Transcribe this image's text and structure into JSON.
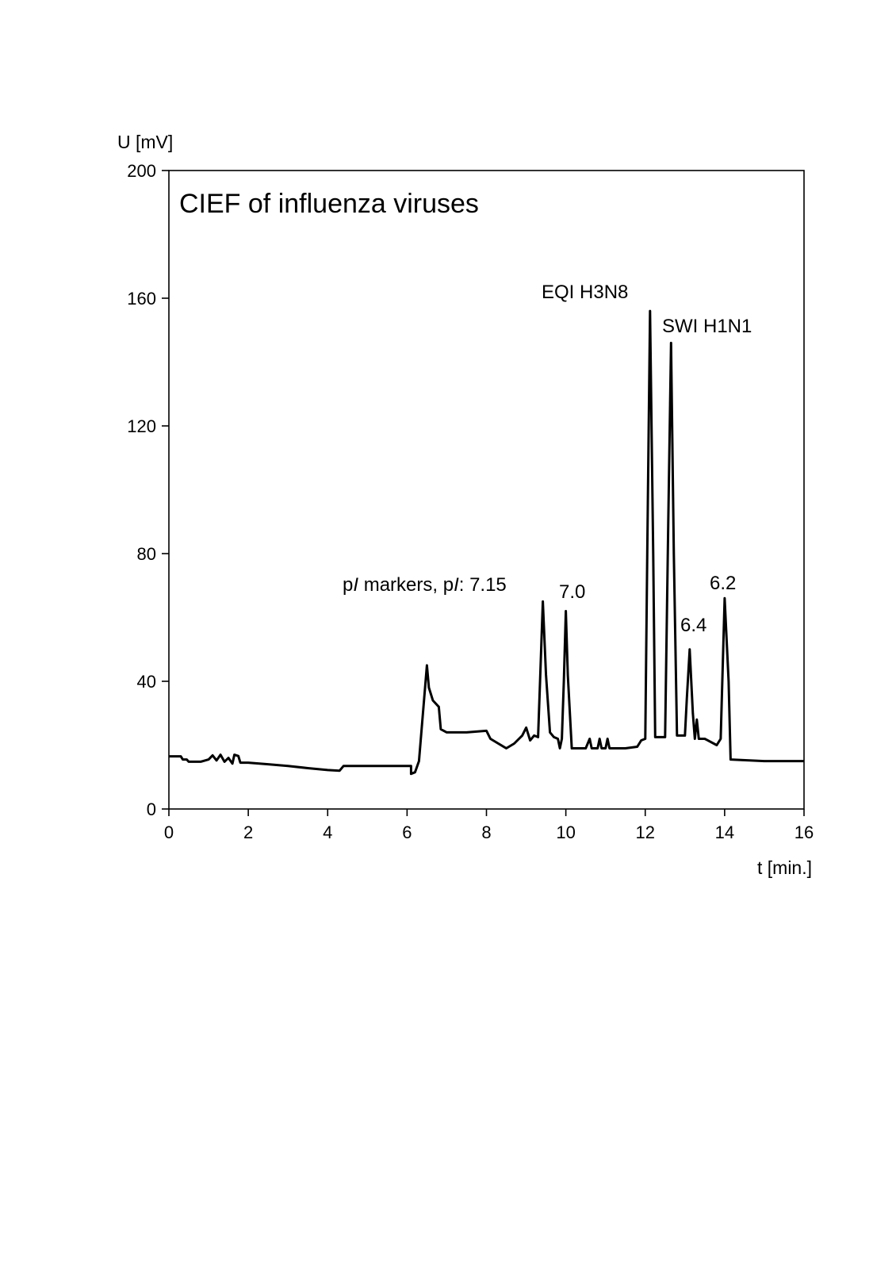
{
  "chart_data": {
    "type": "line",
    "title": "CIEF of influenza viruses",
    "xlabel": "t [min.]",
    "ylabel": "U [mV]",
    "xlim": [
      0,
      16
    ],
    "ylim": [
      0,
      200
    ],
    "xticks": [
      0,
      2,
      4,
      6,
      8,
      10,
      12,
      14,
      16
    ],
    "yticks": [
      0,
      40,
      80,
      120,
      160,
      200
    ],
    "grid": false,
    "legend": "none",
    "annotations": {
      "markers_prefix": "p",
      "markers_italic": "I",
      "markers_mid": " markers, p",
      "markers_suffix": ": 7.15",
      "pi_7_0": "7.0",
      "eqi": "EQI  H3N8",
      "swi": "SWI H1N1",
      "pi_6_4": "6.4",
      "pi_6_2": "6.2"
    },
    "series": [
      {
        "values": [
          [
            0.0,
            16.5
          ],
          [
            0.3,
            16.5
          ],
          [
            0.35,
            15.5
          ],
          [
            0.45,
            15.5
          ],
          [
            0.5,
            14.8
          ],
          [
            0.8,
            14.8
          ],
          [
            1.0,
            15.5
          ],
          [
            1.1,
            16.8
          ],
          [
            1.2,
            15.2
          ],
          [
            1.3,
            17.0
          ],
          [
            1.4,
            14.8
          ],
          [
            1.5,
            16.0
          ],
          [
            1.6,
            14.2
          ],
          [
            1.65,
            17.0
          ],
          [
            1.75,
            16.6
          ],
          [
            1.8,
            14.5
          ],
          [
            2.0,
            14.5
          ],
          [
            2.5,
            14.0
          ],
          [
            3.0,
            13.5
          ],
          [
            3.5,
            12.8
          ],
          [
            4.0,
            12.2
          ],
          [
            4.3,
            12.0
          ],
          [
            4.4,
            13.5
          ],
          [
            5.0,
            13.5
          ],
          [
            6.1,
            13.5
          ],
          [
            6.1,
            11.0
          ],
          [
            6.2,
            11.5
          ],
          [
            6.3,
            15.0
          ],
          [
            6.4,
            30.0
          ],
          [
            6.5,
            45.0
          ],
          [
            6.55,
            38.0
          ],
          [
            6.65,
            34.0
          ],
          [
            6.8,
            32.0
          ],
          [
            6.85,
            25.0
          ],
          [
            7.0,
            24.0
          ],
          [
            7.5,
            24.0
          ],
          [
            8.0,
            24.5
          ],
          [
            8.1,
            22.0
          ],
          [
            8.5,
            19.0
          ],
          [
            8.7,
            20.5
          ],
          [
            8.9,
            23.0
          ],
          [
            9.0,
            25.5
          ],
          [
            9.1,
            21.5
          ],
          [
            9.2,
            23.0
          ],
          [
            9.3,
            22.5
          ],
          [
            9.35,
            40.0
          ],
          [
            9.42,
            65.0
          ],
          [
            9.5,
            42.0
          ],
          [
            9.6,
            24.0
          ],
          [
            9.7,
            22.5
          ],
          [
            9.8,
            22.0
          ],
          [
            9.85,
            19.0
          ],
          [
            9.9,
            22.0
          ],
          [
            9.95,
            40.0
          ],
          [
            10.0,
            62.0
          ],
          [
            10.05,
            42.0
          ],
          [
            10.15,
            19.0
          ],
          [
            10.5,
            19.0
          ],
          [
            10.6,
            22.0
          ],
          [
            10.65,
            19.0
          ],
          [
            10.8,
            19.0
          ],
          [
            10.85,
            22.0
          ],
          [
            10.9,
            19.0
          ],
          [
            11.0,
            19.0
          ],
          [
            11.05,
            22.0
          ],
          [
            11.1,
            19.0
          ],
          [
            11.5,
            19.0
          ],
          [
            11.8,
            19.5
          ],
          [
            11.9,
            21.5
          ],
          [
            12.0,
            22.0
          ],
          [
            12.05,
            80.0
          ],
          [
            12.12,
            156.0
          ],
          [
            12.2,
            80.0
          ],
          [
            12.25,
            22.5
          ],
          [
            12.5,
            22.5
          ],
          [
            12.58,
            90.0
          ],
          [
            12.65,
            146.0
          ],
          [
            12.72,
            80.0
          ],
          [
            12.8,
            23.0
          ],
          [
            13.0,
            23.0
          ],
          [
            13.05,
            35.0
          ],
          [
            13.12,
            50.0
          ],
          [
            13.2,
            30.0
          ],
          [
            13.25,
            22.0
          ],
          [
            13.3,
            28.0
          ],
          [
            13.35,
            22.0
          ],
          [
            13.5,
            22.0
          ],
          [
            13.8,
            20.0
          ],
          [
            13.9,
            22.0
          ],
          [
            14.0,
            66.0
          ],
          [
            14.1,
            40.0
          ],
          [
            14.15,
            15.5
          ],
          [
            15.0,
            15.0
          ],
          [
            15.5,
            15.0
          ],
          [
            16.0,
            15.0
          ]
        ]
      }
    ]
  }
}
